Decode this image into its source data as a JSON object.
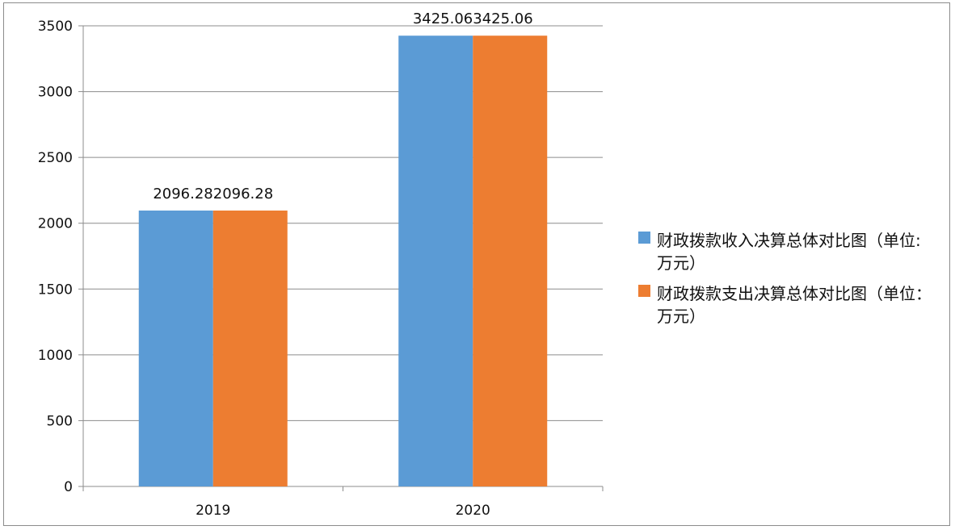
{
  "chart_data": {
    "type": "bar",
    "categories": [
      "2019",
      "2020"
    ],
    "series": [
      {
        "name": "财政拨款收入决算总体对比图（单位:万元）",
        "values": [
          2096.28,
          3425.06
        ],
        "color": "#5b9bd5"
      },
      {
        "name": "财政拨款支出决算总体对比图（单位：万元）",
        "values": [
          2096.28,
          3425.06
        ],
        "color": "#ed7d31"
      }
    ],
    "data_labels": [
      "2096.282096.28",
      "3425.063425.06"
    ],
    "title": "",
    "xlabel": "",
    "ylabel": "",
    "ylim": [
      0,
      3500
    ],
    "yticks": [
      "0",
      "500",
      "1000",
      "1500",
      "2000",
      "2500",
      "3000",
      "3500"
    ],
    "grid": true,
    "legend_position": "right"
  }
}
